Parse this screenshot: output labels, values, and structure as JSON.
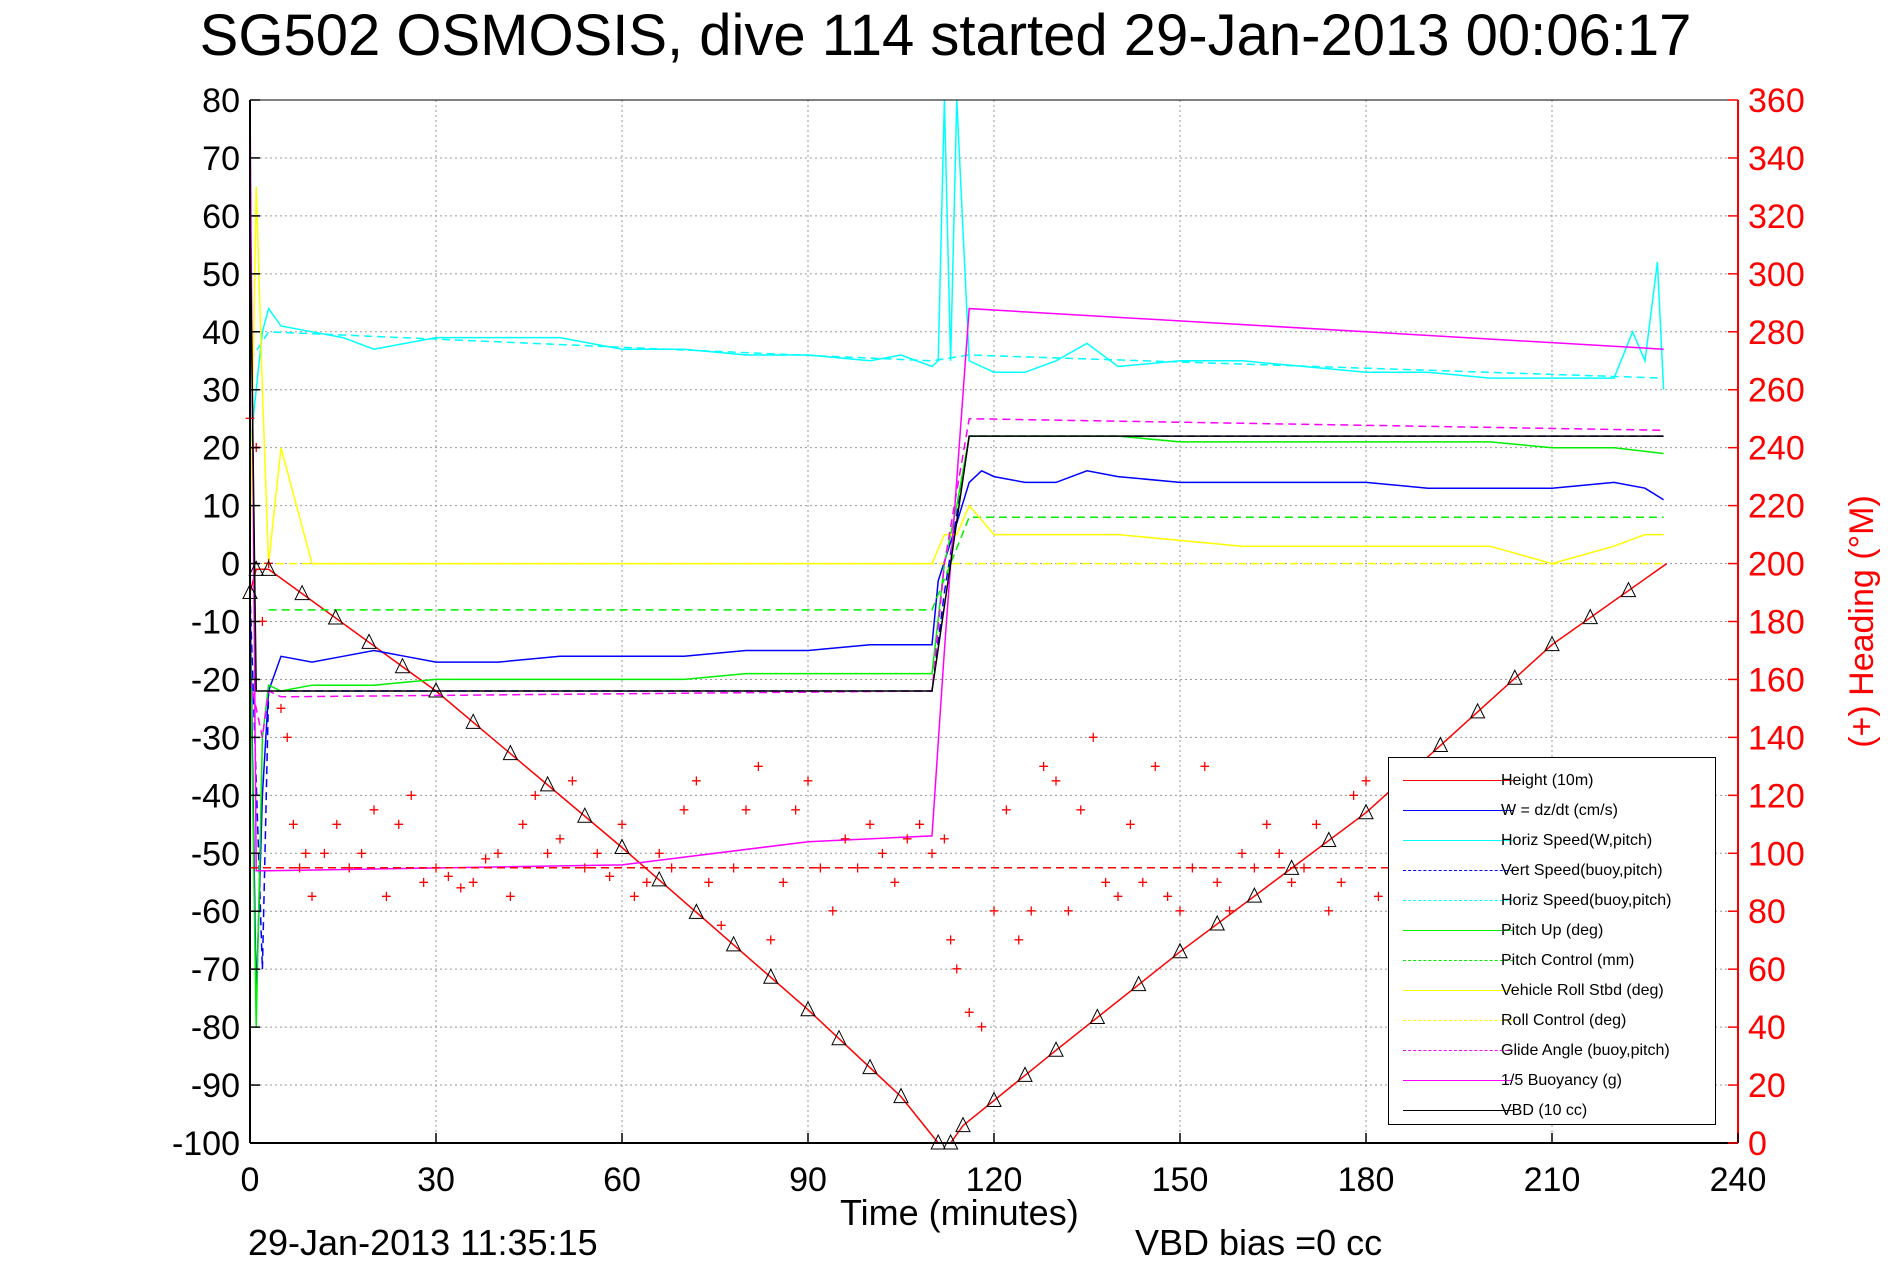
{
  "page": {
    "title": "SG502 OSMOSIS, dive 114 started 29-Jan-2013 00:06:17",
    "footer_date": "29-Jan-2013 11:35:15",
    "footer_vbd": "VBD bias =0 cc"
  },
  "chart_data": {
    "type": "line",
    "title": "SG502 OSMOSIS, dive 114 started 29-Jan-2013 00:06:17",
    "xlabel": "Time (minutes)",
    "ylabel": "",
    "y2label": "(+) Heading (°M)",
    "xlim": [
      0,
      240
    ],
    "ylim": [
      -100,
      80
    ],
    "y2lim": [
      0,
      360
    ],
    "xticks": [
      "0",
      "30",
      "60",
      "90",
      "120",
      "150",
      "180",
      "210",
      "240"
    ],
    "yticks": [
      "80",
      "70",
      "60",
      "50",
      "40",
      "30",
      "20",
      "10",
      "0",
      "-10",
      "-20",
      "-30",
      "-40",
      "-50",
      "-60",
      "-70",
      "-80",
      "-90",
      "-100"
    ],
    "y2ticks": [
      "360",
      "340",
      "320",
      "300",
      "280",
      "260",
      "240",
      "220",
      "200",
      "180",
      "160",
      "140",
      "120",
      "100",
      "80",
      "60",
      "40",
      "20",
      "0"
    ],
    "grid": true,
    "legend_position": "bottom-right",
    "colors": {
      "red": "#ff0000",
      "blue": "#0000ff",
      "cyan": "#00ffff",
      "green": "#00ee00",
      "yellow": "#ffff00",
      "magenta": "#ff00ff",
      "black": "#000000"
    },
    "series": [
      {
        "name": "Height (10m)",
        "color": "#ff0000",
        "dash": "solid",
        "x": [
          0,
          1,
          3,
          30,
          60,
          90,
          105,
          111,
          113,
          115,
          130,
          150,
          180,
          210,
          228.5
        ],
        "y": [
          -5,
          -1,
          -1,
          -22,
          -49,
          -77,
          -92,
          -100,
          -100,
          -97,
          -84,
          -67,
          -43,
          -14,
          0
        ]
      },
      {
        "name": "W = dz/dt (cm/s)",
        "color": "#0000ff",
        "dash": "solid",
        "x": [
          0,
          1,
          2,
          3,
          5,
          10,
          15,
          20,
          25,
          30,
          40,
          50,
          60,
          70,
          80,
          90,
          100,
          110,
          111,
          114,
          116,
          118,
          120,
          125,
          130,
          135,
          140,
          150,
          160,
          170,
          180,
          190,
          200,
          210,
          220,
          225,
          228
        ],
        "y": [
          -5,
          -75,
          -40,
          -22,
          -16,
          -17,
          -16,
          -15,
          -16,
          -17,
          -17,
          -16,
          -16,
          -16,
          -15,
          -15,
          -14,
          -14,
          -3,
          7,
          14,
          16,
          15,
          14,
          14,
          16,
          15,
          14,
          14,
          14,
          14,
          13,
          13,
          13,
          14,
          13,
          11
        ]
      },
      {
        "name": "Horiz Speed(W,pitch)",
        "color": "#00ffff",
        "dash": "solid",
        "x": [
          0,
          1,
          2,
          3,
          5,
          10,
          15,
          20,
          30,
          40,
          50,
          60,
          70,
          80,
          90,
          100,
          105,
          110,
          111,
          112,
          113,
          114,
          116,
          120,
          125,
          130,
          135,
          140,
          150,
          160,
          170,
          180,
          190,
          200,
          210,
          220,
          223,
          225,
          227,
          228
        ],
        "y": [
          20,
          30,
          40,
          44,
          41,
          40,
          39,
          37,
          39,
          39,
          39,
          37,
          37,
          36,
          36,
          35,
          36,
          34,
          35,
          80,
          35,
          80,
          35,
          33,
          33,
          35,
          38,
          34,
          35,
          35,
          34,
          33,
          33,
          32,
          32,
          32,
          40,
          35,
          52,
          30
        ]
      },
      {
        "name": "Vert Speed(buoy,pitch)",
        "color": "#0000ff",
        "dash": "dashed",
        "x": [
          0,
          2,
          3,
          110,
          112,
          116,
          228
        ],
        "y": [
          -5,
          -70,
          -22,
          -22,
          -5,
          22,
          22
        ]
      },
      {
        "name": "Horiz Speed(buoy,pitch)",
        "color": "#00ffff",
        "dash": "dashed",
        "x": [
          0,
          3,
          110,
          116,
          228
        ],
        "y": [
          35,
          40,
          35,
          36,
          32
        ]
      },
      {
        "name": "Pitch Up (deg)",
        "color": "#00ee00",
        "dash": "solid",
        "x": [
          0,
          1,
          2,
          3,
          5,
          10,
          20,
          30,
          40,
          50,
          60,
          70,
          80,
          90,
          100,
          110,
          112,
          114,
          116,
          120,
          130,
          140,
          150,
          160,
          170,
          180,
          190,
          200,
          210,
          220,
          228
        ],
        "y": [
          -10,
          -80,
          -30,
          -21,
          -22,
          -21,
          -21,
          -20,
          -20,
          -20,
          -20,
          -20,
          -19,
          -19,
          -19,
          -19,
          0,
          10,
          22,
          22,
          22,
          22,
          21,
          21,
          21,
          21,
          21,
          21,
          20,
          20,
          19
        ]
      },
      {
        "name": "Pitch Control (mm)",
        "color": "#00ee00",
        "dash": "dashed",
        "x": [
          3,
          15,
          15,
          110,
          116,
          228
        ],
        "y": [
          -8,
          -8,
          -8,
          -8,
          8,
          8
        ]
      },
      {
        "name": "Vehicle Roll Stbd (deg)",
        "color": "#ffff00",
        "dash": "solid",
        "x": [
          0,
          1,
          2,
          3,
          5,
          10,
          20,
          40,
          60,
          80,
          100,
          110,
          112,
          114,
          116,
          120,
          140,
          160,
          180,
          200,
          210,
          220,
          225,
          228
        ],
        "y": [
          0,
          65,
          30,
          0,
          20,
          0,
          0,
          0,
          0,
          0,
          0,
          0,
          5,
          5,
          10,
          5,
          5,
          3,
          3,
          3,
          0,
          3,
          5,
          5
        ]
      },
      {
        "name": "Roll Control (deg)",
        "color": "#ffff00",
        "dash": "dashed",
        "x": [
          0,
          3,
          110,
          112,
          228
        ],
        "y": [
          0,
          0,
          0,
          0,
          0
        ]
      },
      {
        "name": "Glide Angle (buoy,pitch)",
        "color": "#ff00ff",
        "dash": "dashed",
        "x": [
          0,
          2,
          3,
          5,
          110,
          112,
          116,
          228
        ],
        "y": [
          -20,
          -30,
          -22,
          -23,
          -22,
          0,
          25,
          23
        ]
      },
      {
        "name": "1/5 Buoyancy (g)",
        "color": "#ff00ff",
        "dash": "solid",
        "x": [
          0,
          1,
          3,
          60,
          90,
          110,
          112,
          116,
          228
        ],
        "y": [
          80,
          -53,
          -53,
          -52,
          -48,
          -47,
          -15,
          44,
          37
        ]
      },
      {
        "name": "VBD (10 cc)",
        "color": "#000000",
        "dash": "solid",
        "x": [
          0,
          1,
          3,
          110,
          116,
          228
        ],
        "y": [
          60,
          -22,
          -22,
          -22,
          22,
          22
        ]
      }
    ],
    "heading_series": {
      "name": "Heading (°M)",
      "marker": "+",
      "color": "#ff0000",
      "x": [
        0,
        1,
        2,
        3,
        5,
        6,
        7,
        8,
        9,
        10,
        12,
        14,
        16,
        18,
        20,
        22,
        24,
        26,
        28,
        30,
        32,
        34,
        36,
        38,
        40,
        42,
        44,
        46,
        48,
        50,
        52,
        54,
        56,
        58,
        60,
        62,
        64,
        66,
        68,
        70,
        72,
        74,
        76,
        78,
        80,
        82,
        84,
        86,
        88,
        90,
        92,
        94,
        96,
        98,
        100,
        102,
        104,
        106,
        108,
        110,
        112,
        113,
        114,
        116,
        118,
        120,
        122,
        124,
        126,
        128,
        130,
        132,
        134,
        136,
        138,
        140,
        142,
        144,
        146,
        148,
        150,
        152,
        154,
        156,
        158,
        160,
        162,
        164,
        166,
        168,
        170,
        172,
        174,
        176,
        178,
        180,
        182,
        184,
        186,
        188,
        190,
        192,
        194,
        196,
        198,
        200,
        202,
        204,
        206,
        208,
        210,
        212,
        214,
        216,
        218,
        220,
        222,
        224,
        226,
        228
      ],
      "y": [
        250,
        240,
        180,
        200,
        150,
        140,
        110,
        95,
        100,
        85,
        100,
        110,
        95,
        100,
        115,
        85,
        110,
        120,
        90,
        95,
        92,
        88,
        90,
        98,
        100,
        85,
        110,
        120,
        100,
        105,
        125,
        95,
        100,
        92,
        110,
        85,
        90,
        100,
        95,
        115,
        125,
        90,
        75,
        95,
        115,
        130,
        70,
        90,
        115,
        125,
        95,
        80,
        105,
        95,
        110,
        100,
        90,
        105,
        110,
        100,
        105,
        70,
        60,
        45,
        40,
        80,
        115,
        70,
        80,
        130,
        125,
        80,
        115,
        140,
        90,
        85,
        110,
        90,
        130,
        85,
        80,
        95,
        130,
        90,
        80,
        100,
        95,
        110,
        100,
        90,
        95,
        110,
        80,
        90,
        120,
        125,
        85,
        95,
        110,
        100,
        105,
        90,
        100,
        110,
        120,
        130,
        110,
        95,
        100,
        85,
        90,
        95,
        105,
        110,
        100,
        115,
        105,
        110,
        115,
        120
      ]
    },
    "heading_mean": 95,
    "triangle_markers_on": "Height (10m)"
  }
}
